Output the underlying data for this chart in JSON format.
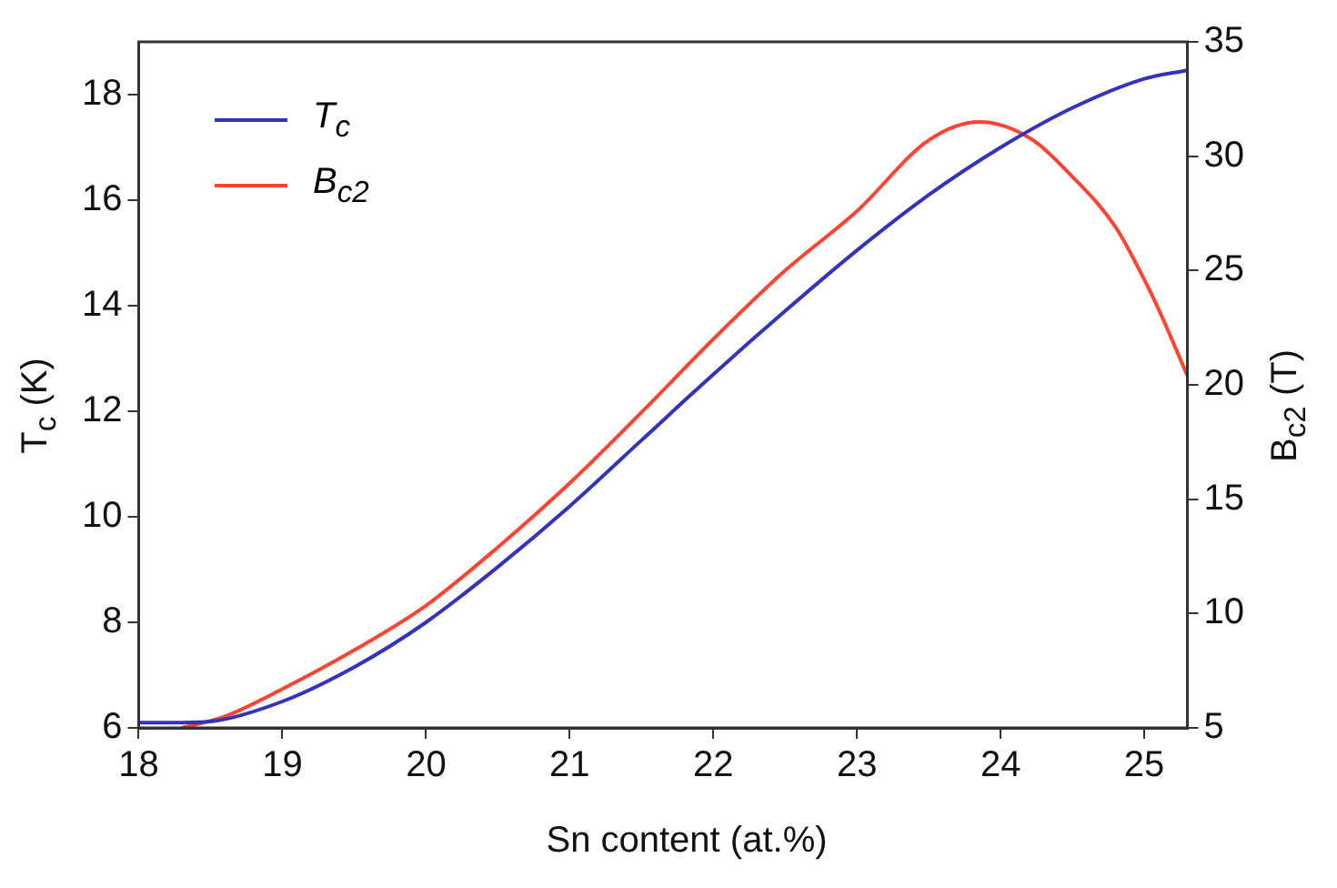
{
  "chart_data": {
    "type": "line",
    "xlabel": "Sn content (at.%)",
    "ylabel": "T$_{c}$ (K)",
    "y2label": "B$_{c2}$ (T)",
    "xlim": [
      18,
      25.3
    ],
    "xticks": [
      18,
      19,
      20,
      21,
      22,
      23,
      24,
      25
    ],
    "ylim": [
      6,
      19
    ],
    "yticks": [
      6,
      8,
      10,
      12,
      14,
      16,
      18
    ],
    "y2lim": [
      5,
      35
    ],
    "y2ticks": [
      5,
      10,
      15,
      20,
      25,
      30,
      35
    ],
    "grid": false,
    "legend": "top left",
    "marker": "none",
    "line_style": "solid",
    "series": [
      {
        "name": "T$_{c}$",
        "color": "#3333bb",
        "x": [
          18,
          18.3,
          18.5,
          19,
          19.5,
          20,
          20.5,
          21,
          21.5,
          22,
          22.5,
          23,
          23.5,
          24,
          24.5,
          25,
          25.3
        ],
        "values": [
          6.1,
          6.1,
          6.12,
          6.5,
          7.15,
          8.0,
          9.05,
          10.2,
          11.45,
          12.7,
          13.9,
          15.05,
          16.1,
          17.0,
          17.75,
          18.3,
          18.46
        ]
      },
      {
        "name": "B$_{c2}$",
        "color": "#ff4433",
        "axis": "y2",
        "x": [
          18.3,
          18.6,
          19,
          19.5,
          20,
          20.5,
          21,
          21.5,
          22,
          22.5,
          23,
          23.5,
          23.85,
          24.2,
          24.5,
          24.8,
          25,
          25.1,
          25.3
        ],
        "values": [
          5.0,
          5.5,
          6.7,
          8.4,
          10.35,
          12.9,
          15.7,
          18.8,
          22.0,
          25.0,
          27.6,
          30.7,
          31.5,
          30.8,
          29.1,
          26.9,
          24.6,
          23.3,
          20.4
        ]
      }
    ]
  }
}
